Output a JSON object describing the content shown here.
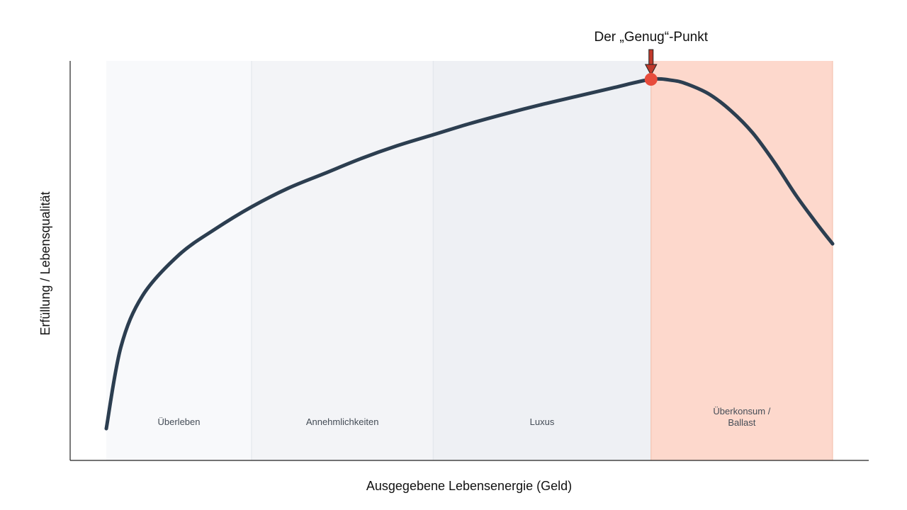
{
  "chart_data": {
    "type": "line",
    "title": "",
    "xlabel": "Ausgegebene Lebensenergie (Geld)",
    "ylabel": "Erfüllung / Lebensqualität",
    "xlim": [
      0,
      100
    ],
    "ylim": [
      0,
      100
    ],
    "grid": false,
    "legend": "none",
    "zones": [
      {
        "name": "Überleben",
        "lines": [
          "Überleben"
        ],
        "start": 0,
        "end": 20,
        "color": "#f8f9fb"
      },
      {
        "name": "Annehmlichkeiten",
        "lines": [
          "Annehmlichkeiten"
        ],
        "start": 20,
        "end": 45,
        "color": "#f3f4f7"
      },
      {
        "name": "Luxus",
        "lines": [
          "Luxus"
        ],
        "start": 45,
        "end": 75,
        "color": "#eef0f4"
      },
      {
        "name": "Überkonsum / Ballast",
        "lines": [
          "Überkonsum /",
          "Ballast"
        ],
        "start": 75,
        "end": 100,
        "color": "#fdd8cc"
      }
    ],
    "series": [
      {
        "color": "#2c3e50",
        "x": [
          0,
          2,
          5,
          10,
          15,
          20,
          25,
          30,
          35,
          40,
          45,
          50,
          55,
          60,
          65,
          70,
          75,
          78,
          80,
          83,
          86,
          89,
          92,
          95,
          98,
          100
        ],
        "y": [
          4,
          26,
          40,
          51,
          58,
          64,
          69,
          73,
          77,
          80.5,
          83.5,
          86.5,
          89.2,
          91.7,
          94,
          96.3,
          98.5,
          98.2,
          97.2,
          94.5,
          90,
          84,
          76,
          67,
          59,
          54
        ]
      }
    ],
    "annotation": {
      "label": "Der „Genug“-Punkt",
      "x": 75,
      "y": 98.5,
      "marker_color": "#e74c3c",
      "arrow_color": "#c0392b"
    }
  }
}
